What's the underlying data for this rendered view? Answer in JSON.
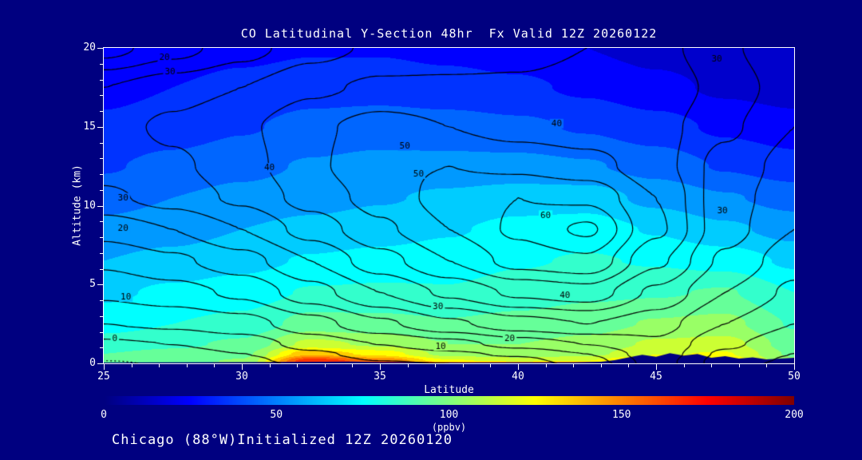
{
  "footer": "Chicago (88°W)Initialized 12Z 20260120",
  "colors": {
    "background": "#000080",
    "axis": "#ffffff",
    "contour": "#000000",
    "text": "#ffffff"
  },
  "chart_data": {
    "type": "heatmap",
    "title": "CO Latitudinal Y-Section 48hr  Fx Valid 12Z 20260122",
    "xlabel": "Latitude",
    "ylabel": "Altitude (km)",
    "colorbar_label": "(ppbv)",
    "xlim": [
      25,
      50
    ],
    "ylim": [
      0,
      20
    ],
    "x_ticks": [
      25,
      30,
      35,
      40,
      45,
      50
    ],
    "y_ticks": [
      0,
      5,
      10,
      15,
      20
    ],
    "colorbar_range": [
      0,
      200
    ],
    "colorbar_ticks": [
      0,
      50,
      100,
      150,
      200
    ],
    "fill_band_step": 10,
    "lats": [
      25,
      27.5,
      30,
      32.5,
      35,
      37.5,
      40,
      42.5,
      45,
      47.5,
      50
    ],
    "alts": [
      0,
      0.15,
      0.6,
      1.2,
      2.5,
      4.5,
      6.5,
      8.5,
      10.5,
      12.5,
      15,
      17.5,
      20
    ],
    "fill_grid_ppbv": [
      [
        95,
        98,
        102,
        185,
        180,
        175,
        170,
        170,
        165,
        130,
        105
      ],
      [
        94,
        97,
        101,
        168,
        152,
        122,
        116,
        120,
        138,
        127,
        103
      ],
      [
        90,
        93,
        97,
        138,
        126,
        106,
        104,
        107,
        119,
        121,
        98
      ],
      [
        85,
        88,
        92,
        113,
        108,
        100,
        100,
        103,
        112,
        114,
        95
      ],
      [
        76,
        80,
        83,
        94,
        93,
        91,
        93,
        96,
        101,
        103,
        89
      ],
      [
        68,
        72,
        75,
        81,
        82,
        81,
        85,
        88,
        89,
        91,
        80
      ],
      [
        60,
        63,
        67,
        71,
        73,
        75,
        79,
        81,
        79,
        76,
        68
      ],
      [
        53,
        56,
        60,
        63,
        66,
        69,
        73,
        75,
        69,
        62,
        56
      ],
      [
        46,
        50,
        53,
        56,
        59,
        62,
        65,
        65,
        57,
        51,
        46
      ],
      [
        39,
        43,
        47,
        51,
        53,
        53,
        53,
        51,
        46,
        39,
        34
      ],
      [
        32,
        35,
        39,
        43,
        45,
        44,
        42,
        39,
        34,
        28,
        24
      ],
      [
        27,
        30,
        33,
        36,
        36,
        34,
        32,
        28,
        23,
        18,
        15
      ],
      [
        22,
        24,
        27,
        29,
        29,
        27,
        24,
        20,
        16,
        13,
        11
      ]
    ],
    "contour_levels": [
      -5,
      0,
      5,
      10,
      15,
      20,
      25,
      30,
      35,
      40,
      45,
      50,
      55,
      60
    ],
    "contour_grid": [
      [
        -6,
        -4,
        -3,
        2,
        4,
        5,
        7,
        12,
        22,
        13,
        8
      ],
      [
        -5,
        -4,
        -2,
        3,
        5,
        6,
        8,
        13,
        22,
        13,
        9
      ],
      [
        -3,
        -2,
        0,
        4,
        7,
        9,
        11,
        15,
        23,
        14,
        10
      ],
      [
        -1,
        0,
        2,
        7,
        10,
        13,
        17,
        20,
        24,
        16,
        11
      ],
      [
        5,
        6,
        8,
        13,
        19,
        24,
        28,
        30,
        27,
        20,
        15
      ],
      [
        11,
        13,
        16,
        23,
        30,
        36,
        41,
        43,
        34,
        25,
        19
      ],
      [
        16,
        19,
        23,
        30,
        38,
        45,
        52,
        54,
        41,
        29,
        22
      ],
      [
        22,
        25,
        30,
        37,
        44,
        50,
        56,
        61,
        46,
        32,
        25
      ],
      [
        29,
        32,
        36,
        42,
        47,
        52,
        55,
        54,
        45,
        32,
        27
      ],
      [
        32,
        34,
        38,
        44,
        49,
        50,
        49,
        47,
        42,
        33,
        28
      ],
      [
        33,
        36,
        39,
        44,
        47,
        45,
        43,
        42,
        42,
        36,
        30
      ],
      [
        30,
        33,
        35,
        39,
        41,
        41,
        41,
        42,
        44,
        38,
        32
      ],
      [
        18,
        23,
        28,
        33,
        36,
        37,
        38,
        40,
        42,
        36,
        30
      ]
    ],
    "contour_labels": [
      {
        "text": "20",
        "lat": 27.2,
        "alt": 19.4
      },
      {
        "text": "30",
        "lat": 27.4,
        "alt": 18.5
      },
      {
        "text": "40",
        "lat": 31.0,
        "alt": 12.4
      },
      {
        "text": "50",
        "lat": 35.9,
        "alt": 13.8
      },
      {
        "text": "50",
        "lat": 36.4,
        "alt": 12.0
      },
      {
        "text": "60",
        "lat": 41.0,
        "alt": 9.4
      },
      {
        "text": "30",
        "lat": 25.7,
        "alt": 10.5
      },
      {
        "text": "20",
        "lat": 25.7,
        "alt": 8.6
      },
      {
        "text": "10",
        "lat": 25.8,
        "alt": 4.2
      },
      {
        "text": "0",
        "lat": 25.4,
        "alt": 1.6
      },
      {
        "text": "30",
        "lat": 37.1,
        "alt": 3.6
      },
      {
        "text": "40",
        "lat": 41.7,
        "alt": 4.3
      },
      {
        "text": "20",
        "lat": 39.7,
        "alt": 1.6
      },
      {
        "text": "10",
        "lat": 37.2,
        "alt": 1.1
      },
      {
        "text": "40",
        "lat": 41.4,
        "alt": 15.2
      },
      {
        "text": "30",
        "lat": 47.2,
        "alt": 19.3
      },
      {
        "text": "30",
        "lat": 47.4,
        "alt": 9.7
      }
    ],
    "terrain": {
      "lats": [
        25,
        30,
        33,
        34,
        35,
        38,
        42,
        43,
        43.5,
        44,
        44.5,
        45,
        45.5,
        46,
        46.5,
        47,
        47.5,
        48,
        48.5,
        49,
        49.5,
        50
      ],
      "alts_km": [
        0.05,
        0.08,
        0.1,
        0.12,
        0.08,
        0.05,
        0.06,
        0.1,
        0.2,
        0.38,
        0.55,
        0.42,
        0.65,
        0.5,
        0.6,
        0.35,
        0.45,
        0.3,
        0.38,
        0.25,
        0.3,
        0.35
      ]
    }
  }
}
